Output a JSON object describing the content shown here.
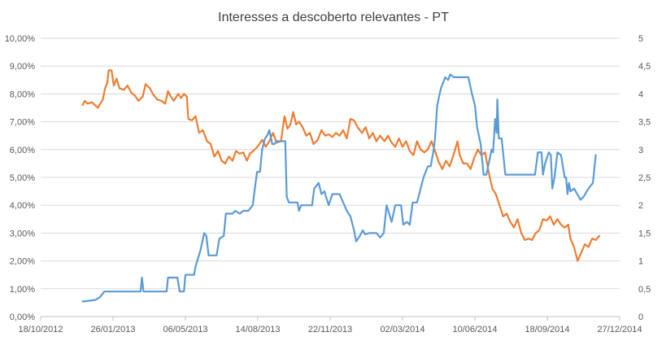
{
  "chart_data": {
    "type": "line",
    "title": "Interesses a descoberto relevantes - PT",
    "xlabel": "",
    "ylabel": "",
    "y2label": "",
    "grid": true,
    "legend": "none",
    "x_ticks": [
      "18/10/2012",
      "26/01/2013",
      "06/05/2013",
      "14/08/2013",
      "22/11/2013",
      "02/03/2014",
      "10/06/2014",
      "18/09/2014",
      "27/12/2014"
    ],
    "x_range": [
      "2012-10-18",
      "2014-12-27"
    ],
    "y_ticks": [
      "0,00%",
      "1,00%",
      "2,00%",
      "3,00%",
      "4,00%",
      "5,00%",
      "6,00%",
      "7,00%",
      "8,00%",
      "9,00%",
      "10,00%"
    ],
    "y_range": [
      0,
      10
    ],
    "y2_ticks": [
      "0",
      "0,5",
      "1",
      "1,5",
      "2",
      "2,5",
      "3",
      "3,5",
      "4",
      "4,5",
      "5"
    ],
    "y2_range": [
      0,
      5
    ],
    "series": [
      {
        "axis": "left",
        "color": "#ed7d31",
        "points": [
          [
            "2012-12-15",
            7.6
          ],
          [
            "2012-12-18",
            7.75
          ],
          [
            "2012-12-22",
            7.65
          ],
          [
            "2012-12-28",
            7.7
          ],
          [
            "2013-01-05",
            7.5
          ],
          [
            "2013-01-12",
            7.8
          ],
          [
            "2013-01-15",
            8.2
          ],
          [
            "2013-01-18",
            8.4
          ],
          [
            "2013-01-20",
            8.85
          ],
          [
            "2013-01-24",
            8.85
          ],
          [
            "2013-01-27",
            8.3
          ],
          [
            "2013-01-31",
            8.55
          ],
          [
            "2013-02-04",
            8.2
          ],
          [
            "2013-02-10",
            8.15
          ],
          [
            "2013-02-15",
            8.3
          ],
          [
            "2013-02-20",
            8.05
          ],
          [
            "2013-02-25",
            7.95
          ],
          [
            "2013-03-02",
            7.75
          ],
          [
            "2013-03-08",
            7.9
          ],
          [
            "2013-03-12",
            8.35
          ],
          [
            "2013-03-18",
            8.2
          ],
          [
            "2013-03-22",
            8.0
          ],
          [
            "2013-03-28",
            7.8
          ],
          [
            "2013-04-03",
            7.75
          ],
          [
            "2013-04-08",
            7.65
          ],
          [
            "2013-04-12",
            8.1
          ],
          [
            "2013-04-16",
            7.9
          ],
          [
            "2013-04-20",
            7.75
          ],
          [
            "2013-04-26",
            8.0
          ],
          [
            "2013-04-30",
            7.85
          ],
          [
            "2013-05-04",
            8.0
          ],
          [
            "2013-05-08",
            7.9
          ],
          [
            "2013-05-10",
            7.1
          ],
          [
            "2013-05-15",
            7.05
          ],
          [
            "2013-05-20",
            7.2
          ],
          [
            "2013-05-25",
            6.6
          ],
          [
            "2013-05-30",
            6.7
          ],
          [
            "2013-06-05",
            6.3
          ],
          [
            "2013-06-10",
            6.2
          ],
          [
            "2013-06-15",
            5.75
          ],
          [
            "2013-06-20",
            5.95
          ],
          [
            "2013-06-25",
            5.6
          ],
          [
            "2013-06-30",
            5.5
          ],
          [
            "2013-07-05",
            5.75
          ],
          [
            "2013-07-10",
            5.6
          ],
          [
            "2013-07-15",
            5.95
          ],
          [
            "2013-07-20",
            5.85
          ],
          [
            "2013-07-25",
            5.9
          ],
          [
            "2013-07-30",
            5.6
          ],
          [
            "2013-08-03",
            5.85
          ],
          [
            "2013-08-10",
            6.0
          ],
          [
            "2013-08-15",
            6.15
          ],
          [
            "2013-08-20",
            6.35
          ],
          [
            "2013-08-25",
            6.1
          ],
          [
            "2013-08-30",
            6.3
          ],
          [
            "2013-09-04",
            6.6
          ],
          [
            "2013-09-09",
            6.25
          ],
          [
            "2013-09-15",
            6.3
          ],
          [
            "2013-09-20",
            7.2
          ],
          [
            "2013-09-24",
            6.75
          ],
          [
            "2013-09-28",
            6.9
          ],
          [
            "2013-10-02",
            7.35
          ],
          [
            "2013-10-06",
            6.9
          ],
          [
            "2013-10-10",
            7.0
          ],
          [
            "2013-10-15",
            6.8
          ],
          [
            "2013-10-20",
            6.5
          ],
          [
            "2013-10-25",
            6.6
          ],
          [
            "2013-10-30",
            6.2
          ],
          [
            "2013-11-05",
            6.35
          ],
          [
            "2013-11-10",
            6.7
          ],
          [
            "2013-11-15",
            6.5
          ],
          [
            "2013-11-20",
            6.55
          ],
          [
            "2013-11-25",
            6.45
          ],
          [
            "2013-11-30",
            6.6
          ],
          [
            "2013-12-05",
            6.5
          ],
          [
            "2013-12-10",
            6.7
          ],
          [
            "2013-12-15",
            6.4
          ],
          [
            "2013-12-20",
            7.1
          ],
          [
            "2013-12-25",
            7.05
          ],
          [
            "2013-12-30",
            6.8
          ],
          [
            "2014-01-05",
            6.6
          ],
          [
            "2014-01-10",
            6.8
          ],
          [
            "2014-01-15",
            6.4
          ],
          [
            "2014-01-20",
            6.6
          ],
          [
            "2014-01-25",
            6.3
          ],
          [
            "2014-01-30",
            6.5
          ],
          [
            "2014-02-05",
            6.3
          ],
          [
            "2014-02-10",
            6.5
          ],
          [
            "2014-02-15",
            6.25
          ],
          [
            "2014-02-20",
            6.1
          ],
          [
            "2014-02-25",
            6.4
          ],
          [
            "2014-03-02",
            6.1
          ],
          [
            "2014-03-07",
            6.3
          ],
          [
            "2014-03-12",
            5.95
          ],
          [
            "2014-03-17",
            5.8
          ],
          [
            "2014-03-22",
            6.3
          ],
          [
            "2014-03-27",
            6.0
          ],
          [
            "2014-04-01",
            5.9
          ],
          [
            "2014-04-06",
            6.0
          ],
          [
            "2014-04-11",
            6.3
          ],
          [
            "2014-04-16",
            5.95
          ],
          [
            "2014-04-21",
            5.55
          ],
          [
            "2014-04-26",
            5.3
          ],
          [
            "2014-05-01",
            5.6
          ],
          [
            "2014-05-06",
            5.4
          ],
          [
            "2014-05-12",
            5.85
          ],
          [
            "2014-05-17",
            6.3
          ],
          [
            "2014-05-20",
            5.8
          ],
          [
            "2014-05-25",
            5.5
          ],
          [
            "2014-05-30",
            5.5
          ],
          [
            "2014-06-04",
            5.3
          ],
          [
            "2014-06-09",
            5.7
          ],
          [
            "2014-06-14",
            6.0
          ],
          [
            "2014-06-19",
            5.8
          ],
          [
            "2014-06-24",
            5.9
          ],
          [
            "2014-06-29",
            5.2
          ],
          [
            "2014-07-04",
            4.6
          ],
          [
            "2014-07-09",
            4.4
          ],
          [
            "2014-07-14",
            4.0
          ],
          [
            "2014-07-19",
            3.6
          ],
          [
            "2014-07-24",
            3.7
          ],
          [
            "2014-07-29",
            3.4
          ],
          [
            "2014-08-03",
            3.2
          ],
          [
            "2014-08-08",
            3.5
          ],
          [
            "2014-08-13",
            3.0
          ],
          [
            "2014-08-18",
            2.75
          ],
          [
            "2014-08-23",
            2.8
          ],
          [
            "2014-08-28",
            2.75
          ],
          [
            "2014-09-02",
            3.0
          ],
          [
            "2014-09-07",
            3.1
          ],
          [
            "2014-09-12",
            3.5
          ],
          [
            "2014-09-17",
            3.45
          ],
          [
            "2014-09-22",
            3.6
          ],
          [
            "2014-09-27",
            3.3
          ],
          [
            "2014-10-02",
            3.5
          ],
          [
            "2014-10-07",
            3.3
          ],
          [
            "2014-10-12",
            3.2
          ],
          [
            "2014-10-17",
            3.3
          ],
          [
            "2014-10-20",
            2.8
          ],
          [
            "2014-10-25",
            2.5
          ],
          [
            "2014-10-30",
            2.0
          ],
          [
            "2014-11-04",
            2.3
          ],
          [
            "2014-11-09",
            2.6
          ],
          [
            "2014-11-14",
            2.5
          ],
          [
            "2014-11-19",
            2.8
          ],
          [
            "2014-11-24",
            2.75
          ],
          [
            "2014-11-29",
            2.9
          ]
        ]
      },
      {
        "axis": "right",
        "color": "#5b9bd5",
        "points": [
          [
            "2012-12-15",
            0.27
          ],
          [
            "2013-01-02",
            0.3
          ],
          [
            "2013-01-08",
            0.35
          ],
          [
            "2013-01-14",
            0.45
          ],
          [
            "2013-01-25",
            0.45
          ],
          [
            "2013-02-10",
            0.45
          ],
          [
            "2013-03-05",
            0.45
          ],
          [
            "2013-03-07",
            0.7
          ],
          [
            "2013-03-09",
            0.45
          ],
          [
            "2013-03-22",
            0.45
          ],
          [
            "2013-04-10",
            0.45
          ],
          [
            "2013-04-12",
            0.7
          ],
          [
            "2013-04-25",
            0.7
          ],
          [
            "2013-04-28",
            0.45
          ],
          [
            "2013-05-04",
            0.45
          ],
          [
            "2013-05-06",
            0.75
          ],
          [
            "2013-05-18",
            0.75
          ],
          [
            "2013-05-20",
            0.9
          ],
          [
            "2013-05-27",
            1.2
          ],
          [
            "2013-06-01",
            1.5
          ],
          [
            "2013-06-04",
            1.45
          ],
          [
            "2013-06-07",
            1.1
          ],
          [
            "2013-06-18",
            1.1
          ],
          [
            "2013-06-22",
            1.4
          ],
          [
            "2013-06-28",
            1.45
          ],
          [
            "2013-07-01",
            1.85
          ],
          [
            "2013-07-10",
            1.85
          ],
          [
            "2013-07-14",
            1.9
          ],
          [
            "2013-07-20",
            1.85
          ],
          [
            "2013-07-25",
            1.9
          ],
          [
            "2013-08-01",
            1.9
          ],
          [
            "2013-08-07",
            2.0
          ],
          [
            "2013-08-10",
            2.3
          ],
          [
            "2013-08-13",
            2.6
          ],
          [
            "2013-08-17",
            2.6
          ],
          [
            "2013-08-20",
            3.0
          ],
          [
            "2013-08-24",
            3.2
          ],
          [
            "2013-08-27",
            3.25
          ],
          [
            "2013-08-30",
            3.35
          ],
          [
            "2013-09-03",
            3.1
          ],
          [
            "2013-09-06",
            3.1
          ],
          [
            "2013-09-09",
            3.15
          ],
          [
            "2013-09-21",
            3.15
          ],
          [
            "2013-09-23",
            2.15
          ],
          [
            "2013-09-26",
            2.05
          ],
          [
            "2013-10-08",
            2.05
          ],
          [
            "2013-10-10",
            1.9
          ],
          [
            "2013-10-13",
            2.0
          ],
          [
            "2013-10-28",
            2.0
          ],
          [
            "2013-10-31",
            2.3
          ],
          [
            "2013-11-06",
            2.4
          ],
          [
            "2013-11-10",
            2.2
          ],
          [
            "2013-11-14",
            2.25
          ],
          [
            "2013-11-20",
            2.0
          ],
          [
            "2013-11-25",
            2.2
          ],
          [
            "2013-12-05",
            2.2
          ],
          [
            "2013-12-10",
            2.05
          ],
          [
            "2013-12-15",
            1.9
          ],
          [
            "2013-12-20",
            1.8
          ],
          [
            "2013-12-25",
            1.55
          ],
          [
            "2013-12-28",
            1.35
          ],
          [
            "2014-01-02",
            1.45
          ],
          [
            "2014-01-06",
            1.55
          ],
          [
            "2014-01-09",
            1.48
          ],
          [
            "2014-01-15",
            1.5
          ],
          [
            "2014-01-25",
            1.5
          ],
          [
            "2014-01-30",
            1.42
          ],
          [
            "2014-02-04",
            1.5
          ],
          [
            "2014-02-08",
            2.0
          ],
          [
            "2014-02-15",
            1.7
          ],
          [
            "2014-02-20",
            2.0
          ],
          [
            "2014-02-28",
            2.0
          ],
          [
            "2014-03-03",
            1.65
          ],
          [
            "2014-03-08",
            1.7
          ],
          [
            "2014-03-12",
            1.65
          ],
          [
            "2014-03-16",
            2.05
          ],
          [
            "2014-03-22",
            2.05
          ],
          [
            "2014-03-26",
            2.25
          ],
          [
            "2014-03-31",
            2.5
          ],
          [
            "2014-04-06",
            2.7
          ],
          [
            "2014-04-10",
            2.7
          ],
          [
            "2014-04-14",
            3.0
          ],
          [
            "2014-04-16",
            3.2
          ],
          [
            "2014-04-19",
            3.8
          ],
          [
            "2014-04-24",
            4.1
          ],
          [
            "2014-04-30",
            4.3
          ],
          [
            "2014-05-04",
            4.25
          ],
          [
            "2014-05-07",
            4.35
          ],
          [
            "2014-05-12",
            4.3
          ],
          [
            "2014-06-01",
            4.3
          ],
          [
            "2014-06-06",
            4.0
          ],
          [
            "2014-06-10",
            3.8
          ],
          [
            "2014-06-13",
            3.4
          ],
          [
            "2014-06-18",
            3.1
          ],
          [
            "2014-06-22",
            2.55
          ],
          [
            "2014-06-26",
            2.55
          ],
          [
            "2014-07-03",
            3.0
          ],
          [
            "2014-07-05",
            2.95
          ],
          [
            "2014-07-08",
            3.55
          ],
          [
            "2014-07-10",
            3.3
          ],
          [
            "2014-07-11",
            3.9
          ],
          [
            "2014-07-13",
            3.2
          ],
          [
            "2014-07-17",
            3.2
          ],
          [
            "2014-07-22",
            2.55
          ],
          [
            "2014-08-13",
            2.55
          ],
          [
            "2014-08-17",
            2.55
          ],
          [
            "2014-08-22",
            2.55
          ],
          [
            "2014-09-01",
            2.55
          ],
          [
            "2014-09-05",
            2.95
          ],
          [
            "2014-09-10",
            2.95
          ],
          [
            "2014-09-12",
            2.55
          ],
          [
            "2014-09-15",
            2.75
          ],
          [
            "2014-09-20",
            2.95
          ],
          [
            "2014-09-23",
            2.9
          ],
          [
            "2014-09-25",
            2.3
          ],
          [
            "2014-09-28",
            2.5
          ],
          [
            "2014-10-02",
            2.95
          ],
          [
            "2014-10-07",
            2.9
          ],
          [
            "2014-10-12",
            2.5
          ],
          [
            "2014-10-14",
            2.5
          ],
          [
            "2014-10-16",
            2.2
          ],
          [
            "2014-10-18",
            2.4
          ],
          [
            "2014-10-20",
            2.25
          ],
          [
            "2014-10-25",
            2.3
          ],
          [
            "2014-11-03",
            2.1
          ],
          [
            "2014-11-07",
            2.15
          ],
          [
            "2014-11-14",
            2.3
          ],
          [
            "2014-11-20",
            2.4
          ],
          [
            "2014-11-24",
            2.9
          ]
        ]
      }
    ]
  }
}
